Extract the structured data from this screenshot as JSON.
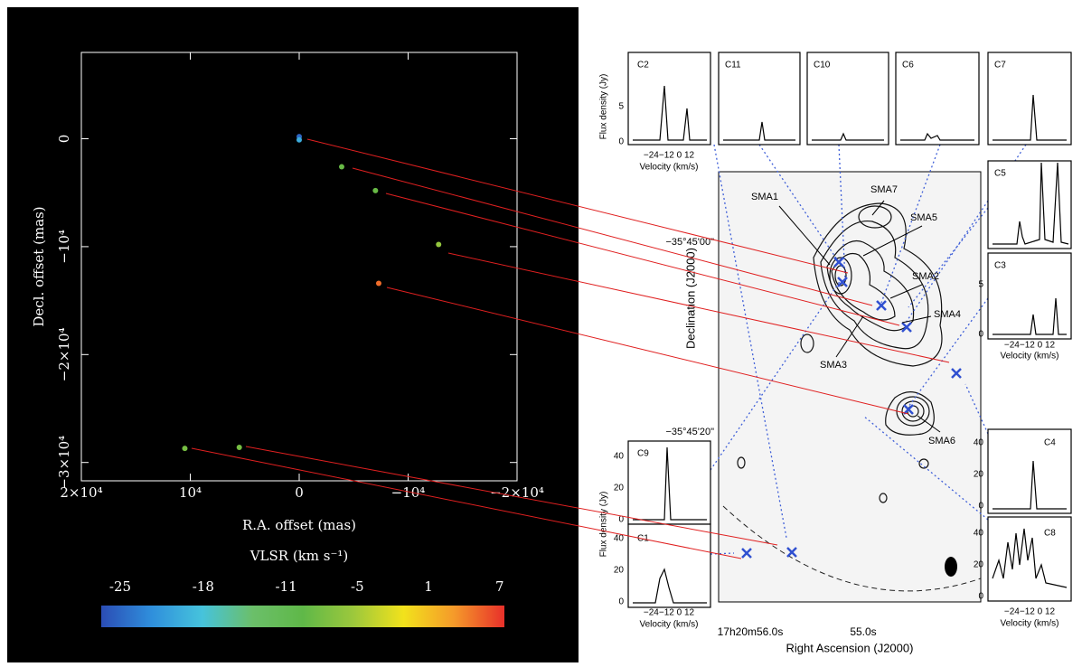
{
  "chart_data": {
    "type": "scatter",
    "xlabel": "R.A. offset (mas)",
    "ylabel": "Decl. offset (mas)",
    "xlim": [
      20000,
      -20000
    ],
    "ylim": [
      -31700,
      8000
    ],
    "xticks": [
      {
        "value": 20000,
        "label": "2×10⁴"
      },
      {
        "value": 10000,
        "label": "10⁴"
      },
      0,
      {
        "value": -10000,
        "label": "−10⁴"
      },
      {
        "value": -20000,
        "label": "−2×10⁴"
      }
    ],
    "yticks": [
      0,
      {
        "value": -10000,
        "label": "−10⁴"
      },
      {
        "value": -20000,
        "label": "−2×10⁴"
      },
      {
        "value": -30000,
        "label": "−3×10⁴"
      }
    ],
    "x": [
      0,
      0,
      -3900,
      -7000,
      -12800,
      -7300,
      10500,
      5500
    ],
    "values": [
      200,
      -100,
      -2600,
      -4800,
      -9800,
      -13400,
      -28700,
      -28600
    ],
    "velocity": [
      -25,
      -20,
      -9,
      -9,
      -6,
      5,
      -8,
      -8
    ],
    "colorbar": {
      "label": "VLSR (km s⁻¹)",
      "clim": [
        -26.6,
        7.4
      ],
      "ticks": [
        -25,
        -18,
        -11,
        -5,
        1,
        7
      ],
      "colors": [
        "#2b4db5",
        "#2f8fdc",
        "#46c3dc",
        "#6bbf6a",
        "#5fb848",
        "#9cc83c",
        "#f2e21c",
        "#f59a2a",
        "#e8302a"
      ]
    }
  },
  "figure": {
    "panels": [
      "C2",
      "C11",
      "C10",
      "C6",
      "C7",
      "C5",
      "C3",
      "C4",
      "C8",
      "C9",
      "C1"
    ],
    "sources": [
      "SMA1",
      "SMA7",
      "SMA5",
      "SMA2",
      "SMA4",
      "SMA3",
      "SMA6"
    ],
    "flux_label": "Flux density (Jy)",
    "velocity_label": "Velocity (km/s)",
    "velocity_ticks": "−24−12 0 12",
    "flux_ticks_small": [
      "5",
      "0"
    ],
    "flux_ticks_large": [
      "40",
      "20",
      "0"
    ],
    "dec_label": "Declination (J2000)",
    "ra_label": "Right Ascension (J2000)",
    "dec_ticks": [
      "−35°45'00\"",
      "−35°45'20\""
    ],
    "ra_ticks": [
      "17h20m56.0s",
      "55.0s"
    ]
  }
}
